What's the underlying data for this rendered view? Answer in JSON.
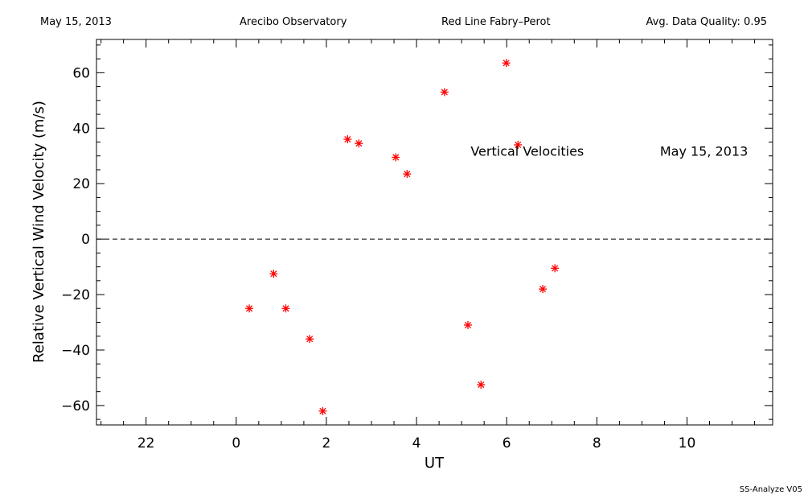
{
  "header": {
    "date": "May 15, 2013",
    "site": "Arecibo Observatory",
    "instrument": "Red Line Fabry–Perot",
    "quality": "Avg. Data Quality: 0.95"
  },
  "footer": {
    "version": "SS-Analyze V05"
  },
  "chart_data": {
    "type": "scatter",
    "xlabel": "UT",
    "ylabel": "Relative Vertical Wind Velocity (m/s)",
    "xlim": [
      20.9,
      35.9
    ],
    "ylim": [
      -67,
      72
    ],
    "x_ticks": [
      22,
      24,
      26,
      28,
      30,
      32,
      34
    ],
    "x_tick_labels": [
      "22",
      "0",
      "2",
      "4",
      "6",
      "8",
      "10"
    ],
    "y_ticks": [
      -60,
      -40,
      -20,
      0,
      20,
      40,
      60
    ],
    "y_tick_labels": [
      "−60",
      "−40",
      "−20",
      "0",
      "20",
      "40",
      "60"
    ],
    "zero_line": true,
    "grid": false,
    "marker": "asterisk",
    "marker_color": "#ff0000",
    "annotations": [
      {
        "text": "Vertical Velocities",
        "x": 29.2,
        "y": 30
      },
      {
        "text": "May 15, 2013",
        "x": 33.4,
        "y": 30
      }
    ],
    "series": [
      {
        "x": [
          24.29,
          24.83,
          25.1,
          25.63,
          25.92,
          26.47,
          26.72,
          27.54,
          27.79,
          28.62,
          29.14,
          29.43,
          29.99,
          30.25,
          30.8,
          31.07
        ],
        "y": [
          -25,
          -12.5,
          -25,
          -36,
          -62,
          36,
          34.5,
          29.5,
          23.5,
          53,
          -31,
          -52.5,
          63.5,
          34,
          -18,
          -10.5
        ]
      }
    ]
  }
}
